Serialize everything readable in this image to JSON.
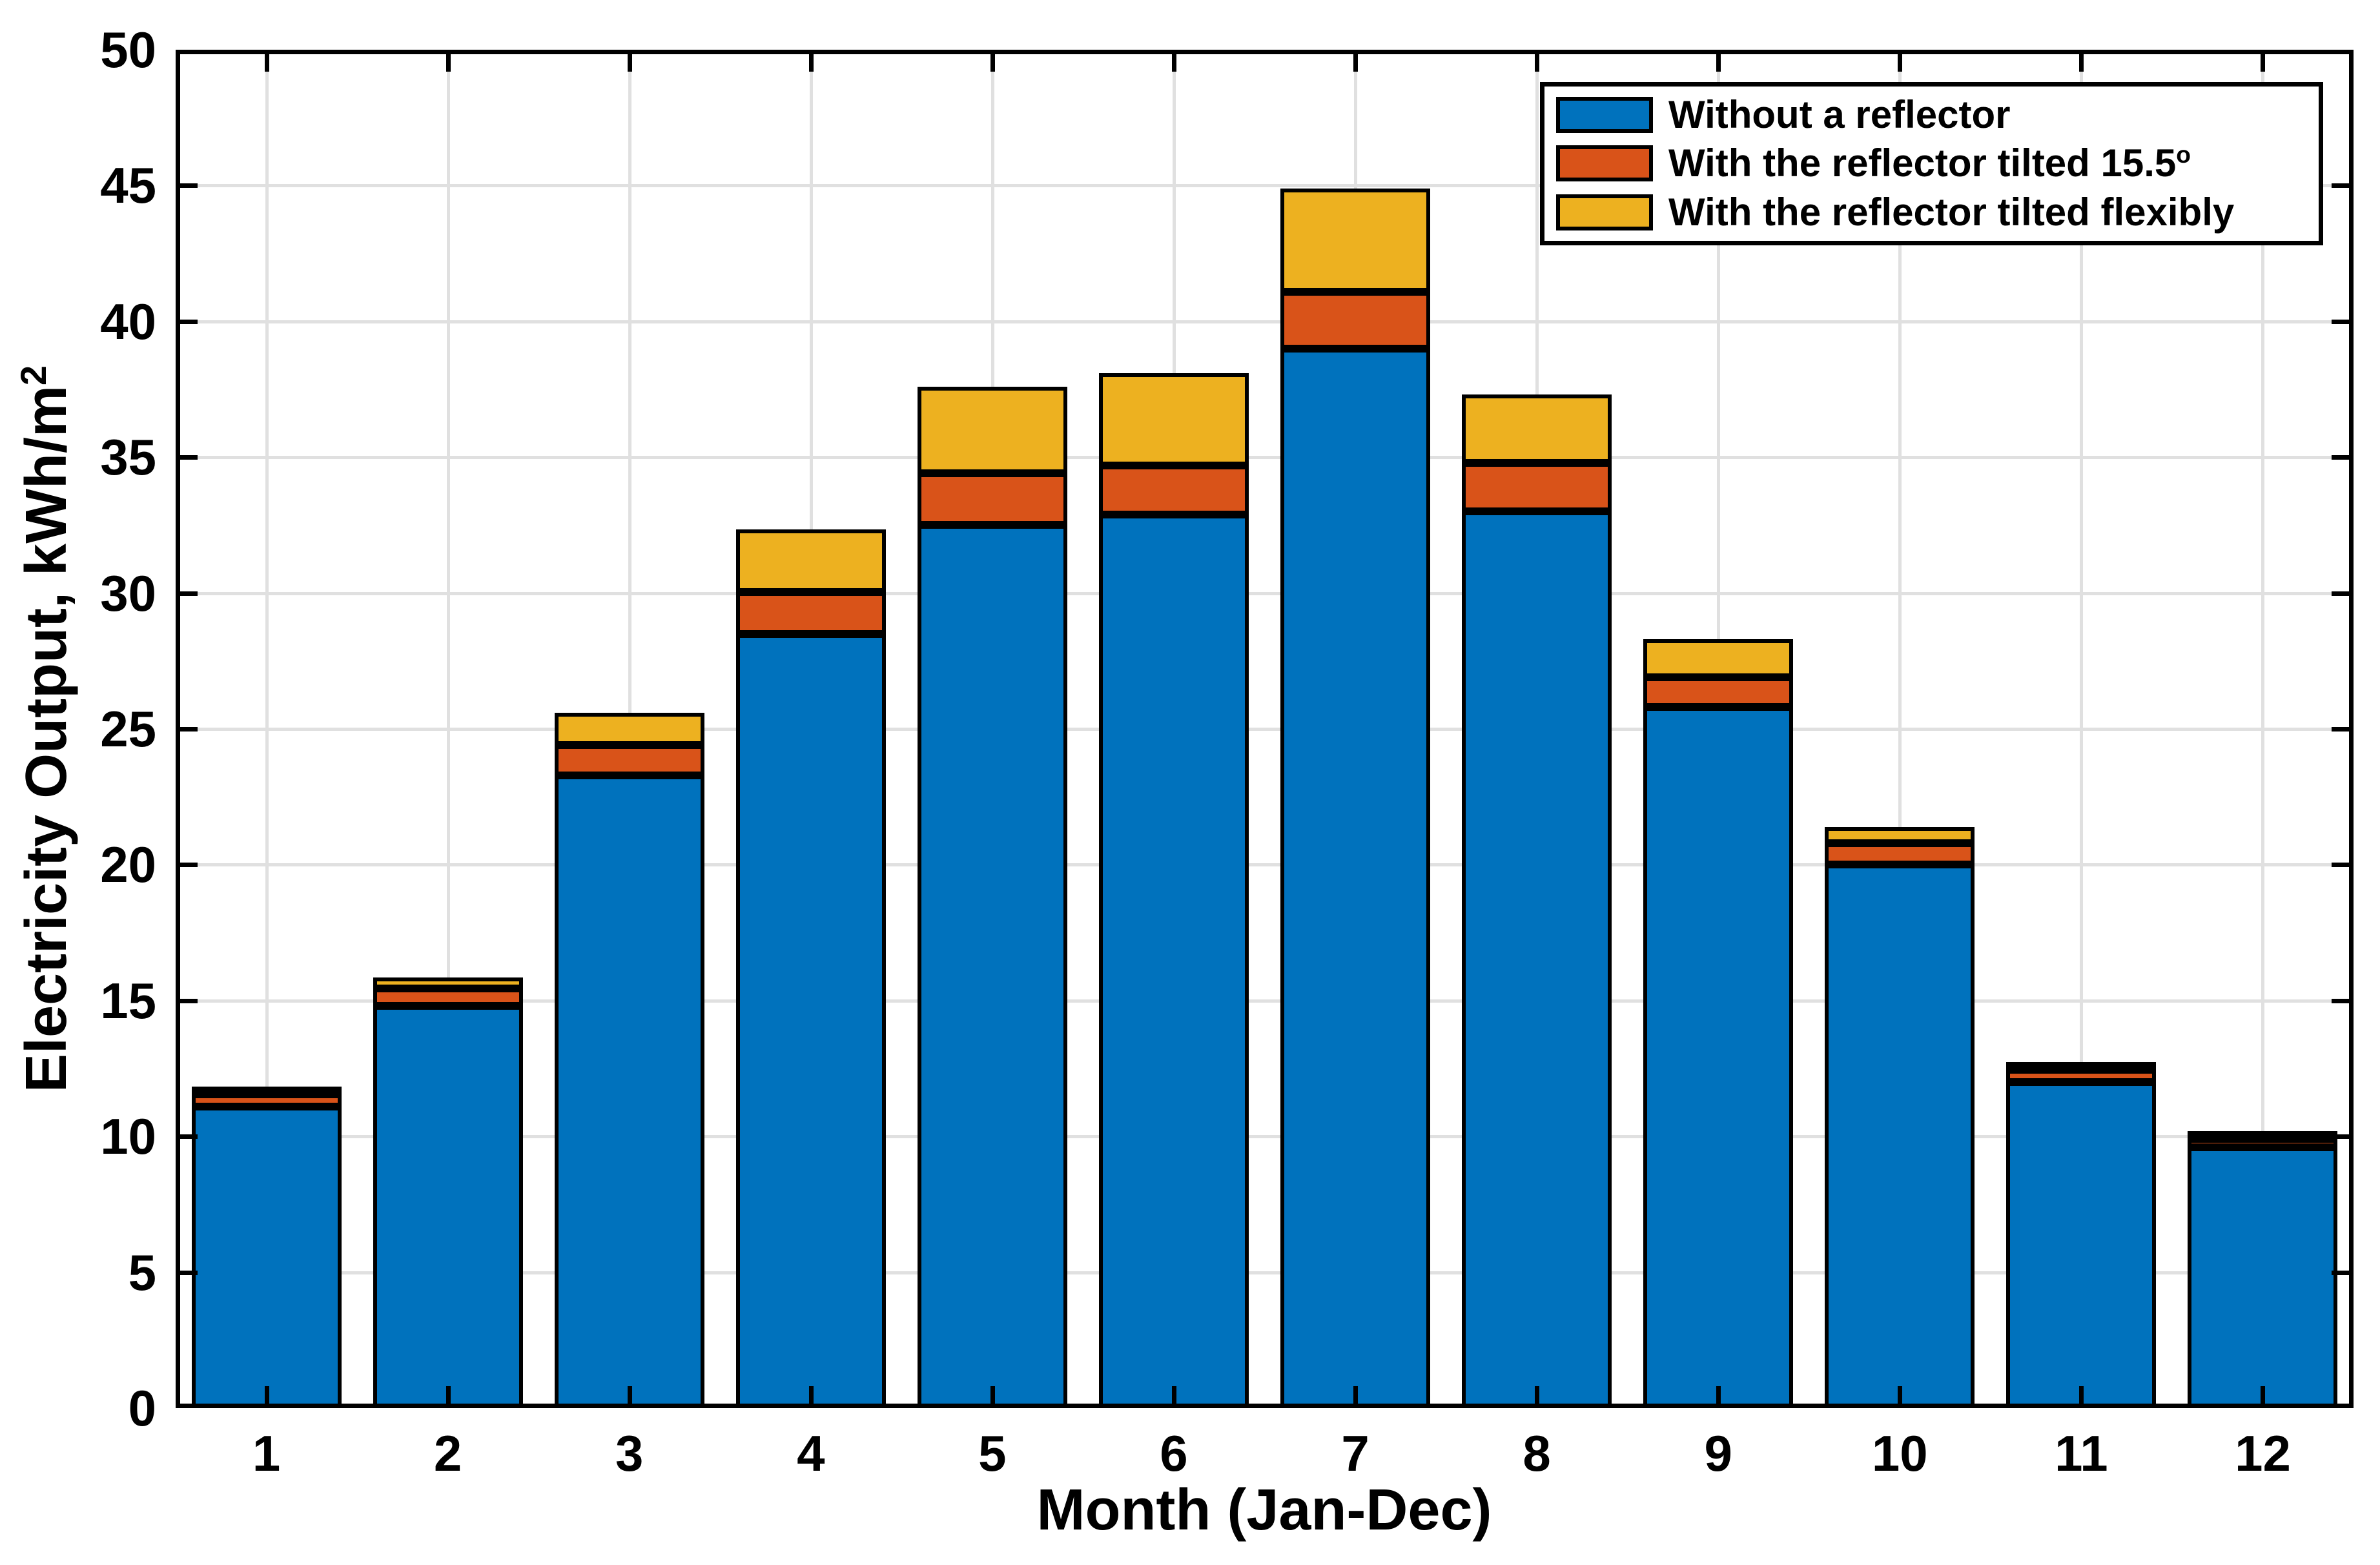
{
  "chart_data": {
    "type": "bar",
    "stacked": true,
    "title": "",
    "xlabel": "Month (Jan-Dec)",
    "ylabel": "Electricity Output, kWh/m^2",
    "ylabel_main": "Electricity Output, kWh/m",
    "ylabel_sup": "2",
    "ylim": [
      0,
      50
    ],
    "ytick_step": 5,
    "yticks": [
      0,
      5,
      10,
      15,
      20,
      25,
      30,
      35,
      40,
      45,
      50
    ],
    "grid": true,
    "categories": [
      "1",
      "2",
      "3",
      "4",
      "5",
      "6",
      "7",
      "8",
      "9",
      "10",
      "11",
      "12"
    ],
    "series": [
      {
        "name": "Without a reflector",
        "color": "#0072BD",
        "values": [
          11.1,
          14.8,
          23.3,
          28.5,
          32.5,
          32.9,
          39.0,
          33.0,
          25.8,
          20.0,
          12.0,
          9.6
        ]
      },
      {
        "name": "With the reflector tilted 15.5°",
        "color": "#D95319",
        "values": [
          0.45,
          0.65,
          1.1,
          1.55,
          1.9,
          1.8,
          2.1,
          1.8,
          1.1,
          0.8,
          0.45,
          0.3
        ]
      },
      {
        "name": "With the reflector tilted flexibly",
        "color": "#EDB120",
        "values": [
          0.1,
          0.4,
          1.2,
          2.3,
          3.2,
          3.4,
          3.8,
          2.5,
          1.4,
          0.6,
          0.1,
          0.1
        ]
      }
    ],
    "stack_totals": [
      11.65,
      15.85,
      25.6,
      32.35,
      37.6,
      38.1,
      44.9,
      37.3,
      28.3,
      21.4,
      12.55,
      10.0
    ],
    "legend": {
      "position": "northeast",
      "entries": [
        {
          "label_main": "Without a reflector",
          "label_sup": "",
          "color": "#0072BD"
        },
        {
          "label_main": "With the reflector tilted 15.5",
          "label_sup": "o",
          "color": "#D95319"
        },
        {
          "label_main": "With the reflector tilted flexibly",
          "label_sup": "",
          "color": "#EDB120"
        }
      ]
    },
    "colors": {
      "axes": "#000000",
      "grid": "#e0e0e0",
      "background": "#ffffff"
    }
  }
}
